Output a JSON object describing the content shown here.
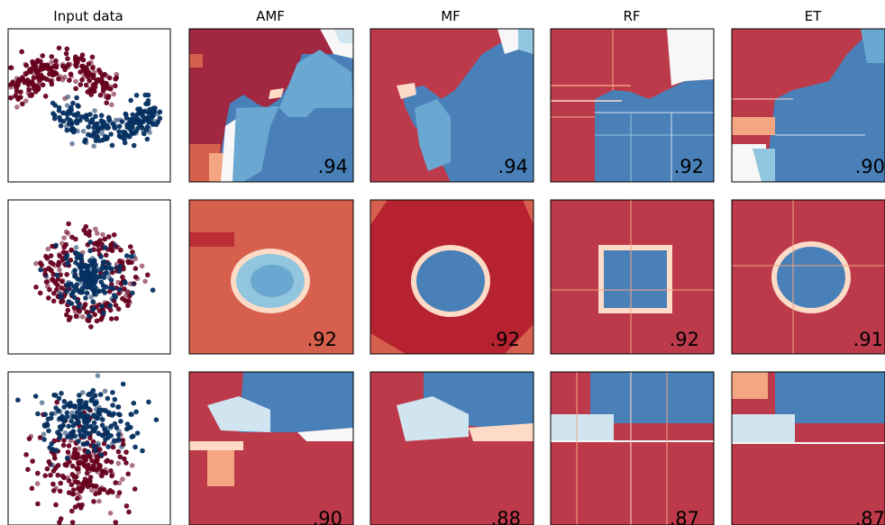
{
  "chart_data": {
    "type": "scatter",
    "description_columns": [
      "Input data",
      "AMF",
      "MF",
      "RF",
      "ET"
    ],
    "rows": [
      {
        "dataset": "moons",
        "scores": {
          "AMF": ".94",
          "MF": ".94",
          "RF": ".92",
          "ET": ".90"
        }
      },
      {
        "dataset": "circles",
        "scores": {
          "AMF": ".92",
          "MF": ".92",
          "RF": ".92",
          "ET": ".91"
        }
      },
      {
        "dataset": "linear",
        "scores": {
          "AMF": ".90",
          "MF": ".88",
          "RF": ".87",
          "ET": ".87"
        }
      }
    ],
    "class_colors": {
      "class_0": "#67001f",
      "class_1": "#053061"
    },
    "colormap": "RdBu",
    "region_colors": [
      "#b2182b",
      "#d6604d",
      "#f4a582",
      "#fddbc7",
      "#f7f7f7",
      "#d1e5f0",
      "#92c5de",
      "#4393c3",
      "#2166ac"
    ]
  }
}
